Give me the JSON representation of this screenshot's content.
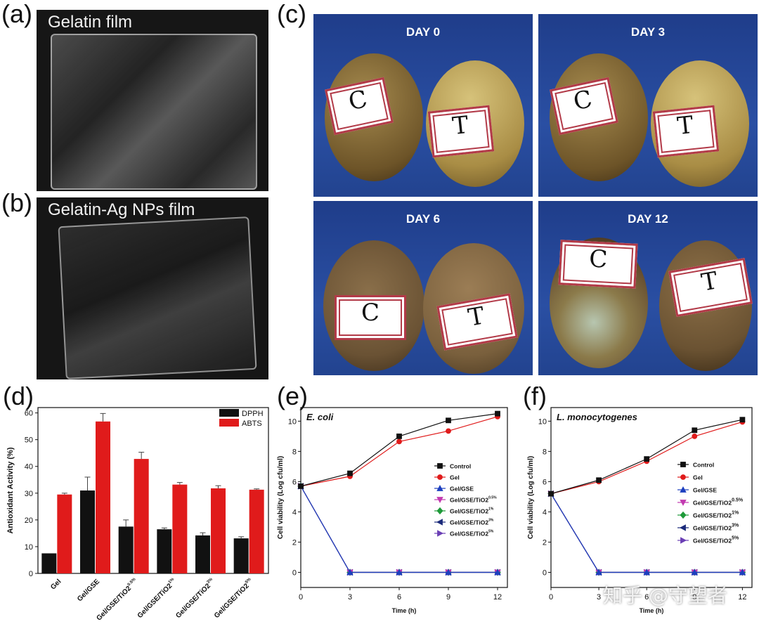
{
  "panels": {
    "a": {
      "label": "(a)",
      "caption": "Gelatin film"
    },
    "b": {
      "label": "(b)",
      "caption": "Gelatin-Ag NPs film"
    },
    "c": {
      "label": "(c)",
      "days": [
        "DAY 0",
        "DAY 3",
        "DAY 6",
        "DAY 12"
      ],
      "tag_c": "C",
      "tag_t": "T"
    },
    "d": {
      "label": "(d)"
    },
    "e": {
      "label": "(e)"
    },
    "f": {
      "label": "(f)"
    }
  },
  "watermark": "知乎 @守望者",
  "colors": {
    "dpph": "#111111",
    "abts": "#e01b1b",
    "control": "#111111",
    "gel": "#e01b1b",
    "gse": "#1d3fbf",
    "tio2_05": "#c23ab0",
    "tio2_1": "#1f9a3a",
    "tio2_3": "#1b2a7a",
    "tio2_5": "#6b3fb5"
  },
  "chart_data": [
    {
      "id": "d",
      "type": "bar",
      "ylabel": "Antioxidant Activity (%)",
      "ylim": [
        0,
        62
      ],
      "yticks": [
        "0",
        "10",
        "20",
        "30",
        "40",
        "50",
        "60"
      ],
      "categories": [
        {
          "base": "Gel",
          "sup": ""
        },
        {
          "base": "Gel/GSE",
          "sup": ""
        },
        {
          "base": "Gel/GSE/TiO2",
          "sup": "0.5%"
        },
        {
          "base": "Gel/GSE/TiO2",
          "sup": "1%"
        },
        {
          "base": "Gel/GSE/TiO2",
          "sup": "3%"
        },
        {
          "base": "Gel/GSE/TiO2",
          "sup": "5%"
        }
      ],
      "series": [
        {
          "name": "DPPH",
          "values": [
            7.5,
            31,
            17.5,
            16.5,
            14.2,
            13.1
          ],
          "errors": [
            0,
            5,
            2.5,
            0.5,
            1,
            0.6
          ]
        },
        {
          "name": "ABTS",
          "values": [
            29.5,
            56.8,
            42.8,
            33.2,
            31.8,
            31.3
          ],
          "errors": [
            0.5,
            3,
            2.5,
            0.8,
            1,
            0.3
          ]
        }
      ]
    },
    {
      "id": "e",
      "type": "line",
      "title": "E. coli",
      "xlabel": "Time (h)",
      "ylabel": "Cell viability (Log cfu/ml)",
      "x": [
        0,
        3,
        6,
        9,
        12
      ],
      "xlim": [
        0,
        12.6
      ],
      "ylim": [
        -1,
        10.9
      ],
      "xticks": [
        "0",
        "3",
        "6",
        "9",
        "12"
      ],
      "yticks": [
        "0",
        "2",
        "4",
        "6",
        "8",
        "10"
      ],
      "series": [
        {
          "name": "Control",
          "sup": "",
          "values": [
            5.7,
            6.55,
            9.0,
            10.05,
            10.5
          ]
        },
        {
          "name": "Gel",
          "sup": "",
          "values": [
            5.7,
            6.35,
            8.65,
            9.35,
            10.3
          ]
        },
        {
          "name": "Gel/GSE",
          "sup": "",
          "values": [
            5.7,
            0,
            0,
            0,
            0
          ]
        },
        {
          "name": "Gel/GSE/TiO2",
          "sup": "0.5%",
          "values": [
            5.7,
            0,
            0,
            0,
            0
          ]
        },
        {
          "name": "Gel/GSE/TiO2",
          "sup": "1%",
          "values": [
            5.7,
            0,
            0,
            0,
            0
          ]
        },
        {
          "name": "Gel/GSE/TiO2",
          "sup": "3%",
          "values": [
            5.7,
            0,
            0,
            0,
            0
          ]
        },
        {
          "name": "Gel/GSE/TiO2",
          "sup": "5%",
          "values": [
            5.7,
            0,
            0,
            0,
            0
          ]
        }
      ]
    },
    {
      "id": "f",
      "type": "line",
      "title": "L. monocytogenes",
      "xlabel": "Time (h)",
      "ylabel": "Cell viability (Log cfu/ml)",
      "x": [
        0,
        3,
        6,
        9,
        12
      ],
      "xlim": [
        0,
        12.6
      ],
      "ylim": [
        -1,
        10.9
      ],
      "xticks": [
        "0",
        "3",
        "6",
        "9",
        "12"
      ],
      "yticks": [
        "0",
        "2",
        "4",
        "6",
        "8",
        "10"
      ],
      "series": [
        {
          "name": "Control",
          "sup": "",
          "values": [
            5.2,
            6.1,
            7.5,
            9.4,
            10.1
          ]
        },
        {
          "name": "Gel",
          "sup": "",
          "values": [
            5.2,
            6.0,
            7.35,
            9.0,
            9.95
          ]
        },
        {
          "name": "Gel/GSE",
          "sup": "",
          "values": [
            5.2,
            0,
            0,
            0,
            0
          ]
        },
        {
          "name": "Gel/GSE/TiO2",
          "sup": "0.5%",
          "values": [
            5.2,
            0,
            0,
            0,
            0
          ]
        },
        {
          "name": "Gel/GSE/TiO2",
          "sup": "1%",
          "values": [
            5.2,
            0,
            0,
            0,
            0
          ]
        },
        {
          "name": "Gel/GSE/TiO2",
          "sup": "3%",
          "values": [
            5.2,
            0,
            0,
            0,
            0
          ]
        },
        {
          "name": "Gel/GSE/TiO2",
          "sup": "5%",
          "values": [
            5.2,
            0,
            0,
            0,
            0
          ]
        }
      ]
    }
  ]
}
